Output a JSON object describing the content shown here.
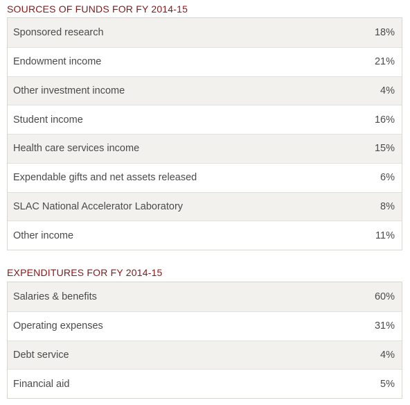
{
  "funds": {
    "title": "SOURCES OF FUNDS FOR FY 2014-15",
    "rows": [
      {
        "label": "Sponsored research",
        "value": "18%"
      },
      {
        "label": "Endowment income",
        "value": "21%"
      },
      {
        "label": "Other investment income",
        "value": "4%"
      },
      {
        "label": "Student income",
        "value": "16%"
      },
      {
        "label": "Health care services income",
        "value": "15%"
      },
      {
        "label": "Expendable gifts and net assets released",
        "value": "6%"
      },
      {
        "label": "SLAC National Accelerator Laboratory",
        "value": "8%"
      },
      {
        "label": "Other income",
        "value": "11%"
      }
    ]
  },
  "expenditures": {
    "title": "EXPENDITURES FOR FY 2014-15",
    "rows": [
      {
        "label": "Salaries & benefits",
        "value": "60%"
      },
      {
        "label": "Operating expenses",
        "value": "31%"
      },
      {
        "label": "Debt service",
        "value": "4%"
      },
      {
        "label": "Financial aid",
        "value": "5%"
      }
    ]
  },
  "colors": {
    "title": "#8c1515",
    "row_shaded": "#f2f1ee",
    "row_plain": "#ffffff",
    "text": "#4a4a4a",
    "border": "#d9d7d2"
  }
}
